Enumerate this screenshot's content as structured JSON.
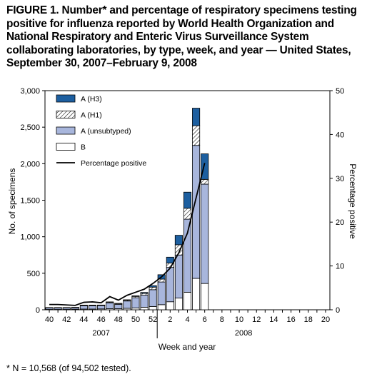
{
  "figure": {
    "title": "FIGURE 1. Number* and percentage of respiratory specimens testing positive for influenza reported by World Health Organization and National Respiratory and Enteric Virus Surveillance System collaborating laboratories, by type, week, and year — United States, September 30, 2007–February 9, 2008",
    "footnote": "* N = 10,568 (of 94,502 tested)."
  },
  "chart_data": {
    "type": "bar",
    "stacked": true,
    "title": "",
    "ylabel": "No. of specimens",
    "y2label": "Percentage positive",
    "xlabel": "Week and year",
    "ylim": [
      0,
      3000
    ],
    "y2lim": [
      0,
      50
    ],
    "yticks": [
      "0",
      "500",
      "1,000",
      "1,500",
      "2,000",
      "2,500",
      "3,000"
    ],
    "y2ticks": [
      "0",
      "10",
      "20",
      "30",
      "40",
      "50"
    ],
    "xtick_labels": [
      "40",
      "42",
      "44",
      "46",
      "48",
      "50",
      "52",
      "2",
      "4",
      "6",
      "8",
      "10",
      "12",
      "14",
      "16",
      "18",
      "20"
    ],
    "year_labels": [
      "2007",
      "2008"
    ],
    "categories": [
      "40",
      "41",
      "42",
      "43",
      "44",
      "45",
      "46",
      "47",
      "48",
      "49",
      "50",
      "51",
      "52",
      "1",
      "2",
      "3",
      "4",
      "5",
      "6",
      "7",
      "8",
      "9",
      "10",
      "11",
      "12",
      "13",
      "14",
      "15",
      "16",
      "17",
      "18",
      "19",
      "20"
    ],
    "legend_position": "top-left",
    "series": [
      {
        "name": "B",
        "kind": "bar",
        "color": "#ffffff",
        "values": [
          5,
          5,
          5,
          8,
          10,
          10,
          12,
          15,
          15,
          20,
          25,
          35,
          45,
          70,
          110,
          160,
          240,
          430,
          360,
          null,
          null,
          null,
          null,
          null,
          null,
          null,
          null,
          null,
          null,
          null,
          null,
          null,
          null
        ]
      },
      {
        "name": "A (unsubtyped)",
        "kind": "bar",
        "color": "#a8b6dc",
        "values": [
          20,
          20,
          20,
          20,
          45,
          45,
          45,
          80,
          60,
          100,
          140,
          165,
          230,
          310,
          470,
          590,
          1000,
          1820,
          1360,
          null,
          null,
          null,
          null,
          null,
          null,
          null,
          null,
          null,
          null,
          null,
          null,
          null,
          null
        ]
      },
      {
        "name": "A (H1)",
        "kind": "bar",
        "color": "hatch",
        "values": [
          4,
          4,
          4,
          4,
          6,
          6,
          6,
          10,
          10,
          12,
          18,
          25,
          35,
          40,
          60,
          140,
          150,
          270,
          65,
          null,
          null,
          null,
          null,
          null,
          null,
          null,
          null,
          null,
          null,
          null,
          null,
          null,
          null
        ]
      },
      {
        "name": "A (H3)",
        "kind": "bar",
        "color": "#1d5fa0",
        "values": [
          1,
          1,
          1,
          1,
          2,
          2,
          2,
          3,
          3,
          5,
          8,
          12,
          20,
          60,
          80,
          130,
          220,
          240,
          350,
          null,
          null,
          null,
          null,
          null,
          null,
          null,
          null,
          null,
          null,
          null,
          null,
          null,
          null
        ]
      },
      {
        "name": "Percentage positive",
        "kind": "line",
        "axis": "right",
        "color": "#000000",
        "values": [
          1.2,
          1.2,
          1.1,
          1.0,
          1.7,
          1.8,
          1.6,
          3.0,
          2.2,
          3.3,
          4.0,
          4.7,
          6.0,
          7.5,
          9.5,
          13.0,
          17.5,
          25.5,
          33.5,
          null,
          null,
          null,
          null,
          null,
          null,
          null,
          null,
          null,
          null,
          null,
          null,
          null,
          null
        ]
      }
    ]
  }
}
